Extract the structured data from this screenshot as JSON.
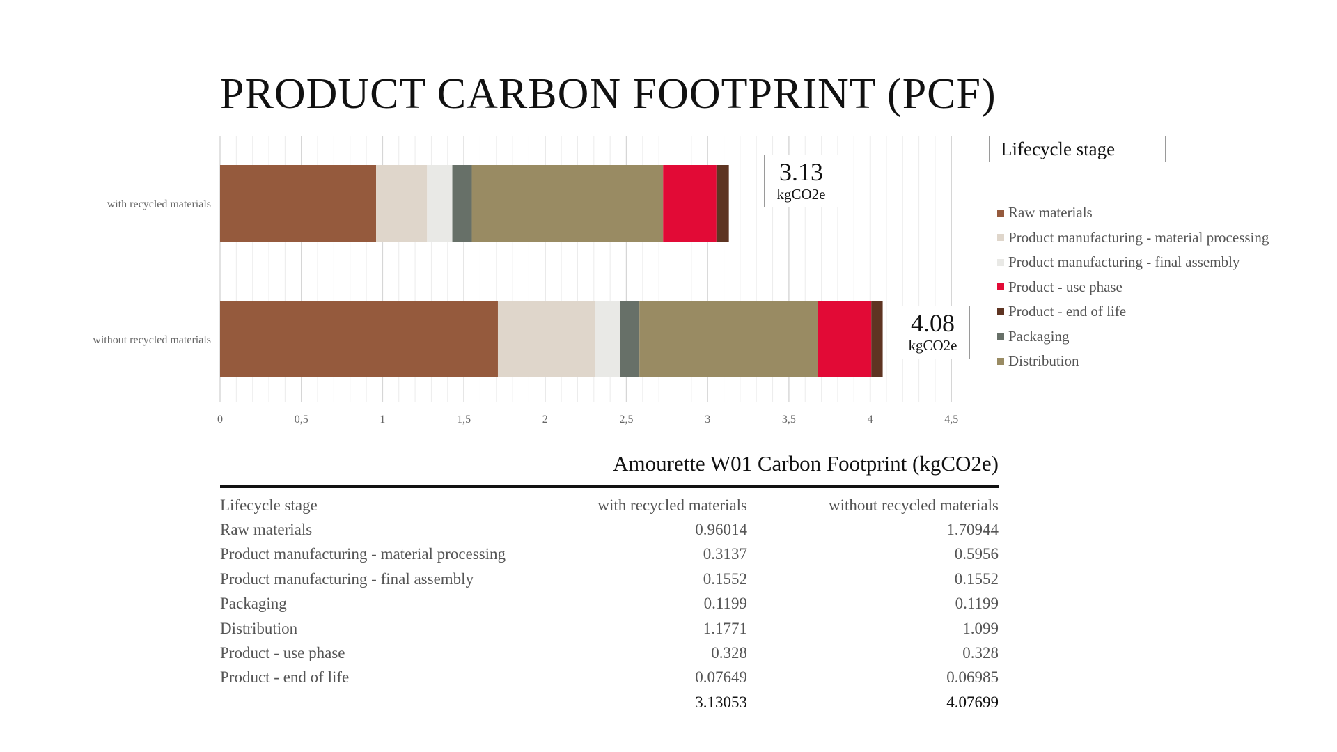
{
  "title": "PRODUCT CARBON FOOTPRINT (PCF)",
  "legend_title": "Lifecycle stage",
  "legend": [
    {
      "label": "Raw materials",
      "color": "#955A3D"
    },
    {
      "label": "Product manufacturing - material processing",
      "color": "#DFD6CB"
    },
    {
      "label": "Product manufacturing - final assembly",
      "color": "#E9E9E6"
    },
    {
      "label": "Product - use phase",
      "color": "#E20A36"
    },
    {
      "label": "Product - end of life",
      "color": "#5E3422"
    },
    {
      "label": "Packaging",
      "color": "#677068"
    },
    {
      "label": "Distribution",
      "color": "#998B63"
    }
  ],
  "chart_data": {
    "type": "bar",
    "orientation": "horizontal",
    "stacked": true,
    "categories": [
      "with recycled materials",
      "without recycled materials"
    ],
    "xlim": [
      0,
      4.5
    ],
    "xticks": [
      "0",
      "0,5",
      "1",
      "1,5",
      "2",
      "2,5",
      "3",
      "3,5",
      "4",
      "4,5"
    ],
    "grid": true,
    "legend_position": "right",
    "series": [
      {
        "name": "Raw materials",
        "color": "#955A3D",
        "values": [
          0.96014,
          1.70944
        ]
      },
      {
        "name": "Product manufacturing - material processing",
        "color": "#DFD6CB",
        "values": [
          0.3137,
          0.5956
        ]
      },
      {
        "name": "Product manufacturing - final assembly",
        "color": "#E9E9E6",
        "values": [
          0.1552,
          0.1552
        ]
      },
      {
        "name": "Packaging",
        "color": "#677068",
        "values": [
          0.1199,
          0.1199
        ]
      },
      {
        "name": "Distribution",
        "color": "#998B63",
        "values": [
          1.1771,
          1.099
        ]
      },
      {
        "name": "Product - use phase",
        "color": "#E20A36",
        "values": [
          0.328,
          0.328
        ]
      },
      {
        "name": "Product - end of life",
        "color": "#5E3422",
        "values": [
          0.07649,
          0.06985
        ]
      }
    ],
    "totals": [
      {
        "value": "3.13",
        "unit": "kgCO2e"
      },
      {
        "value": "4.08",
        "unit": "kgCO2e"
      }
    ]
  },
  "table": {
    "title": "Amourette W01 Carbon Footprint (kgCO2e)",
    "header": [
      "Lifecycle stage",
      "with recycled materials",
      "without recycled materials"
    ],
    "rows": [
      [
        "Raw materials",
        "0.96014",
        "1.70944"
      ],
      [
        "Product manufacturing - material processing",
        "0.3137",
        "0.5956"
      ],
      [
        "Product manufacturing - final assembly",
        "0.1552",
        "0.1552"
      ],
      [
        "Packaging",
        "0.1199",
        "0.1199"
      ],
      [
        "Distribution",
        "1.1771",
        "1.099"
      ],
      [
        "Product - use phase",
        "0.328",
        "0.328"
      ],
      [
        "Product - end of life",
        "0.07649",
        "0.06985"
      ]
    ],
    "total": [
      "",
      "3.13053",
      "4.07699"
    ]
  }
}
